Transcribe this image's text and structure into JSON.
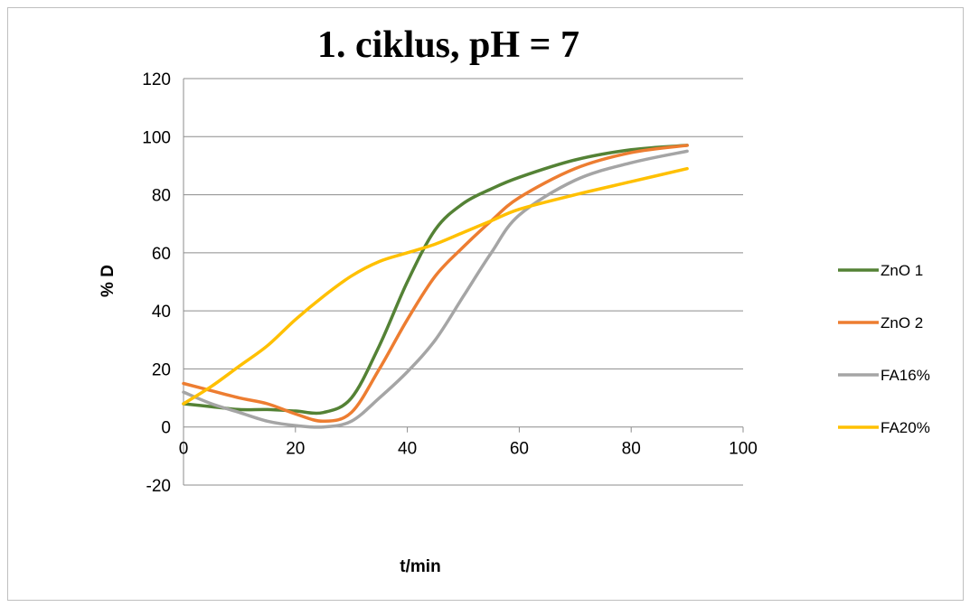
{
  "chart_data": {
    "type": "line",
    "title": "1. ciklus, pH = 7",
    "xlabel": "t/min",
    "ylabel": "% D",
    "xlim": [
      0,
      100
    ],
    "ylim": [
      -20,
      120
    ],
    "x_ticks": [
      0,
      20,
      40,
      60,
      80,
      100
    ],
    "y_ticks": [
      -20,
      0,
      20,
      40,
      60,
      80,
      100,
      120
    ],
    "grid": "horizontal",
    "legend_position": "right",
    "series": [
      {
        "name": "ZnO 1",
        "color": "#548235",
        "x": [
          0,
          5,
          10,
          15,
          20,
          25,
          30,
          35,
          40,
          45,
          50,
          55,
          60,
          70,
          80,
          90
        ],
        "values": [
          8,
          7,
          6,
          6,
          5.5,
          5,
          10,
          28,
          50,
          68,
          77,
          82,
          86,
          92,
          95.5,
          97
        ]
      },
      {
        "name": "ZnO 2",
        "color": "#ed7d31",
        "x": [
          0,
          5,
          10,
          15,
          20,
          25,
          30,
          35,
          40,
          45,
          50,
          55,
          60,
          70,
          80,
          90
        ],
        "values": [
          15,
          12.5,
          10,
          8,
          4.5,
          2,
          5,
          20,
          37,
          52,
          62,
          71,
          79,
          89,
          94.5,
          97
        ]
      },
      {
        "name": "FA16%",
        "color": "#a5a5a5",
        "x": [
          0,
          5,
          10,
          15,
          20,
          25,
          30,
          35,
          40,
          45,
          50,
          55,
          60,
          70,
          80,
          90
        ],
        "values": [
          12,
          8,
          5,
          2,
          0.5,
          0,
          2,
          10,
          19,
          30,
          45,
          60,
          73,
          85,
          91,
          95
        ]
      },
      {
        "name": "FA20%",
        "color": "#ffc000",
        "x": [
          0,
          5,
          10,
          15,
          20,
          25,
          30,
          35,
          40,
          45,
          50,
          55,
          60,
          70,
          80,
          90
        ],
        "values": [
          8,
          14,
          21,
          28,
          37,
          45,
          52,
          57,
          60,
          63,
          67,
          71,
          75,
          80,
          84.5,
          89
        ]
      }
    ]
  }
}
